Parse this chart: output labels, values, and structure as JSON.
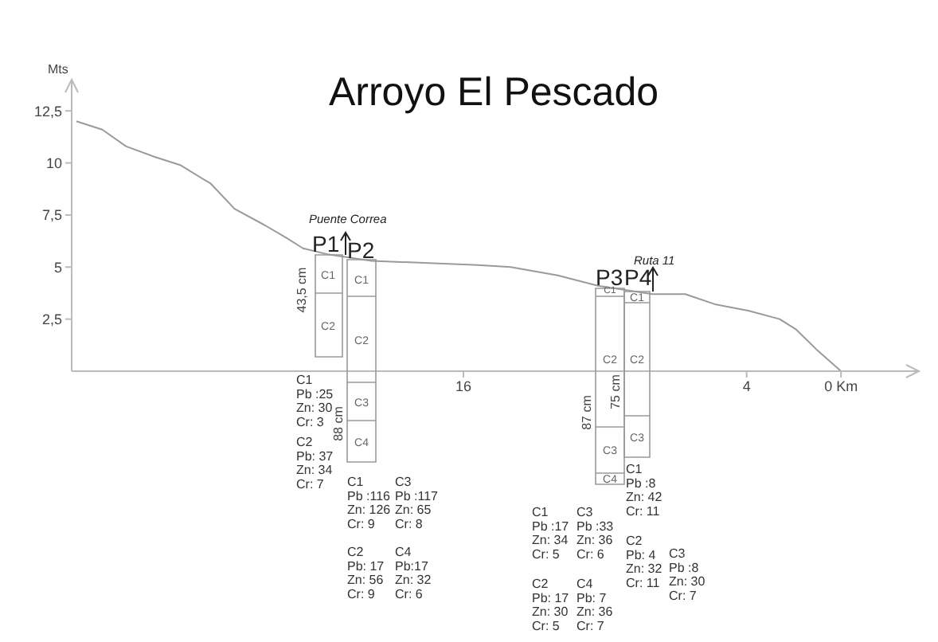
{
  "chart_data": {
    "type": "line",
    "title": "Arroyo El Pescado",
    "ylabel": "Mts",
    "x": [
      32.4,
      31.3,
      30.3,
      29.1,
      28.0,
      26.7,
      25.7,
      24.4,
      23.5,
      22.8,
      21.7,
      19.9,
      15.4,
      14.0,
      12.0,
      10.3,
      8.0,
      6.6,
      5.3,
      3.9,
      2.6,
      1.9,
      1.0,
      0
    ],
    "series": [
      {
        "color": "#9a9a9a",
        "values": [
          12.0,
          11.6,
          10.8,
          10.3,
          9.9,
          9.0,
          7.8,
          7.0,
          6.4,
          5.9,
          5.6,
          5.3,
          5.1,
          5.0,
          4.6,
          4.1,
          3.7,
          3.7,
          3.2,
          2.9,
          2.5,
          2.0,
          1.0,
          0
        ]
      }
    ],
    "xlim": [
      32.6,
      -3.3
    ],
    "ylim": [
      0,
      14
    ],
    "xticks": [
      16,
      4,
      {
        "value": 0,
        "label": "0 Km"
      }
    ],
    "yticks": [
      {
        "value": 2.5,
        "label": "2,5"
      },
      5,
      {
        "value": 7.5,
        "label": "7,5"
      },
      10,
      {
        "value": 12.5,
        "label": "12,5"
      }
    ],
    "grid": false,
    "legend": false,
    "marker": "none",
    "line_style": "solid",
    "annotations": [
      "Puente Correa",
      "P1",
      "P2",
      "Ruta 11",
      "P3",
      "P4",
      "43,5 cm",
      "88 cm",
      "87 cm",
      "75 cm",
      "C1",
      "C2",
      "C1",
      "C2",
      "C3",
      "C4",
      "C1",
      "C2",
      "C3",
      "C4",
      "C1",
      "C2",
      "C3",
      "C1\nPb :25\nZn: 30\nCr: 3",
      "C2\nPb: 37\nZn: 34\nCr: 7",
      "C1\nPb :116\nZn: 126\nCr: 9",
      "C3\nPb :117\nZn: 65\nCr: 8",
      "C2\nPb: 17\nZn: 56\nCr: 9",
      "C4\nPb:17\nZn: 32\nCr: 6",
      "C1\nPb :17\nZn: 34\nCr: 5",
      "C3\nPb :33\nZn: 36\nCr: 6",
      "C2\nPb: 17\nZn: 30\nCr: 5",
      "C4\nPb: 7\nZn: 36\nCr: 7",
      "C1\nPb :8\nZn: 42\nCr: 11",
      "C2\nPb: 4\nZn: 32\nCr: 11",
      "C3\nPb :8\nZn: 30\nCr: 7"
    ]
  }
}
